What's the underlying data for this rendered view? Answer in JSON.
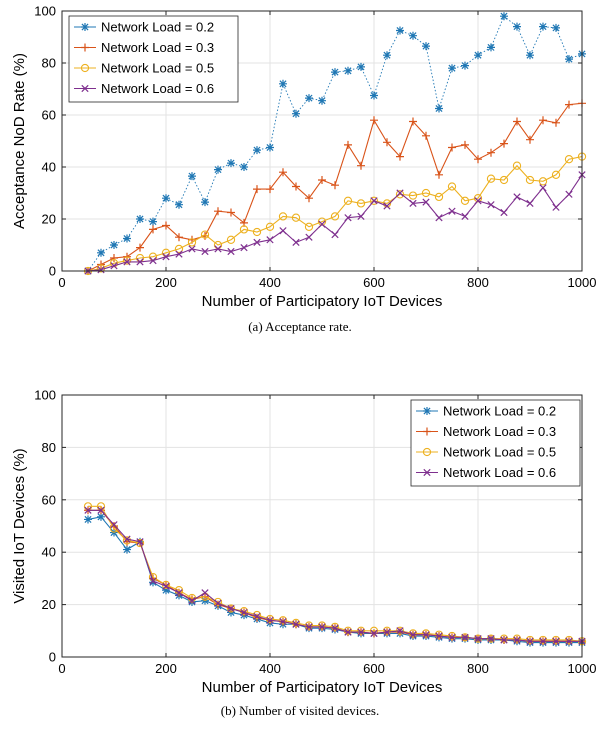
{
  "colors": {
    "series": [
      "#1f77b4",
      "#d95319",
      "#edb120",
      "#7e2f8e"
    ],
    "axes": "#262626",
    "grid": "#e3e3e3"
  },
  "chart_data": [
    {
      "type": "line",
      "caption": "(a) Acceptance rate.",
      "xlabel": "Number of Participatory IoT Devices",
      "ylabel": "Acceptance NoD Rate (%)",
      "xlim": [
        0,
        1000
      ],
      "ylim": [
        0,
        100
      ],
      "xticks": [
        0,
        200,
        400,
        600,
        800,
        1000
      ],
      "yticks": [
        0,
        20,
        40,
        60,
        80,
        100
      ],
      "grid": true,
      "legend_position": "top-left",
      "x": [
        50,
        75,
        100,
        125,
        150,
        175,
        200,
        225,
        250,
        275,
        300,
        325,
        350,
        375,
        400,
        425,
        450,
        475,
        500,
        525,
        550,
        575,
        600,
        625,
        650,
        675,
        700,
        725,
        750,
        775,
        800,
        825,
        850,
        875,
        900,
        925,
        950,
        975,
        1000
      ],
      "series": [
        {
          "name": "Network Load = 0.2",
          "marker": "asterisk",
          "style": "dotted",
          "values": [
            0,
            7,
            10,
            12.5,
            20,
            19,
            28,
            25.5,
            36.5,
            26.5,
            39,
            41.5,
            40,
            46.5,
            47.5,
            72,
            60.5,
            66.5,
            65.5,
            76.5,
            77,
            78.5,
            67.5,
            83,
            92.5,
            90.5,
            86.5,
            62.5,
            78,
            79,
            83,
            86,
            98,
            94,
            83,
            94,
            93.5,
            81.5,
            83.5
          ]
        },
        {
          "name": "Network Load = 0.3",
          "marker": "plus",
          "style": "solid",
          "values": [
            0,
            2.5,
            5,
            5.5,
            9,
            16,
            17.5,
            13,
            12,
            13.5,
            23,
            22.5,
            18.5,
            31.5,
            31.5,
            38,
            32.5,
            28,
            35,
            33,
            48.5,
            40.5,
            58,
            49.5,
            44,
            57.5,
            52,
            37,
            47.5,
            48.5,
            43,
            45.5,
            49,
            57.5,
            50.5,
            58,
            57,
            64,
            64.5
          ]
        },
        {
          "name": "Network Load = 0.5",
          "marker": "circle",
          "style": "solid",
          "values": [
            0,
            1,
            3,
            4,
            5,
            5.5,
            7,
            8.5,
            11,
            14,
            10,
            12,
            16,
            15,
            17,
            21,
            20.5,
            17,
            19,
            21,
            27,
            26,
            27,
            26,
            29.5,
            29,
            30,
            28.5,
            32.5,
            27,
            28,
            35.5,
            35,
            40.5,
            35,
            34.5,
            37,
            43,
            44
          ]
        },
        {
          "name": "Network Load = 0.6",
          "marker": "cross",
          "style": "solid",
          "values": [
            0,
            0.5,
            2,
            3.5,
            3.5,
            4,
            5.5,
            6.5,
            8.5,
            7.5,
            8.5,
            7.5,
            9,
            11,
            12,
            15.5,
            11,
            13,
            18,
            14,
            20.5,
            21,
            27,
            25,
            30,
            26,
            26.5,
            20.5,
            23,
            21,
            27,
            25.5,
            22.5,
            28.5,
            26,
            32,
            24.5,
            29.5,
            37
          ]
        }
      ]
    },
    {
      "type": "line",
      "caption": "(b) Number of visited devices.",
      "xlabel": "Number of Participatory IoT Devices",
      "ylabel": "Visited IoT Devices (%)",
      "xlim": [
        0,
        1000
      ],
      "ylim": [
        0,
        100
      ],
      "xticks": [
        0,
        200,
        400,
        600,
        800,
        1000
      ],
      "yticks": [
        0,
        20,
        40,
        60,
        80,
        100
      ],
      "grid": true,
      "legend_position": "top-right",
      "x": [
        50,
        75,
        100,
        125,
        150,
        175,
        200,
        225,
        250,
        275,
        300,
        325,
        350,
        375,
        400,
        425,
        450,
        475,
        500,
        525,
        550,
        575,
        600,
        625,
        650,
        675,
        700,
        725,
        750,
        775,
        800,
        825,
        850,
        875,
        900,
        925,
        950,
        975,
        1000
      ],
      "series": [
        {
          "name": "Network Load = 0.2",
          "marker": "asterisk",
          "style": "solid",
          "values": [
            52.5,
            53.5,
            47.5,
            41,
            44,
            28.5,
            25.5,
            23.5,
            21,
            21.5,
            19.5,
            17,
            16,
            14.5,
            13,
            12.5,
            12.5,
            11,
            11,
            10.5,
            9.5,
            9,
            9,
            9,
            9,
            8,
            8,
            7.5,
            7,
            7,
            6.5,
            6.5,
            6.5,
            6,
            5.5,
            5.5,
            5.5,
            5.5,
            5.5
          ]
        },
        {
          "name": "Network Load = 0.3",
          "marker": "plus",
          "style": "solid",
          "values": [
            56,
            56,
            50,
            44,
            43.5,
            30,
            27.5,
            24.5,
            22,
            23,
            20,
            18.5,
            17,
            15,
            14,
            13.5,
            12.5,
            11.5,
            11.5,
            11,
            9.5,
            9.5,
            9,
            9.5,
            9.5,
            8.5,
            8.5,
            8,
            7.5,
            7.5,
            7,
            7,
            6.5,
            6.5,
            6,
            6,
            6,
            6,
            6
          ]
        },
        {
          "name": "Network Load = 0.5",
          "marker": "circle",
          "style": "solid",
          "values": [
            57.5,
            57.5,
            49,
            44.5,
            43.5,
            30.5,
            27.5,
            25.5,
            22.5,
            23,
            21,
            18.5,
            17.5,
            16,
            14.5,
            14,
            13,
            12,
            12,
            11.5,
            10,
            10,
            10,
            10,
            10,
            9,
            9,
            8.5,
            8,
            7.5,
            7,
            7,
            7,
            7,
            6.5,
            6.5,
            6.5,
            6.5,
            6
          ]
        },
        {
          "name": "Network Load = 0.6",
          "marker": "cross",
          "style": "solid",
          "values": [
            56,
            56,
            50.5,
            45,
            44,
            29,
            27,
            24.5,
            21.5,
            24.5,
            20.5,
            18.5,
            17,
            15.5,
            14,
            13.5,
            12.5,
            11.5,
            11.5,
            11,
            9.5,
            9.5,
            9,
            9.5,
            10,
            8.5,
            8.5,
            8,
            7.5,
            7.5,
            7,
            7,
            6.5,
            6.5,
            6,
            6,
            6,
            6,
            6
          ]
        }
      ]
    }
  ]
}
